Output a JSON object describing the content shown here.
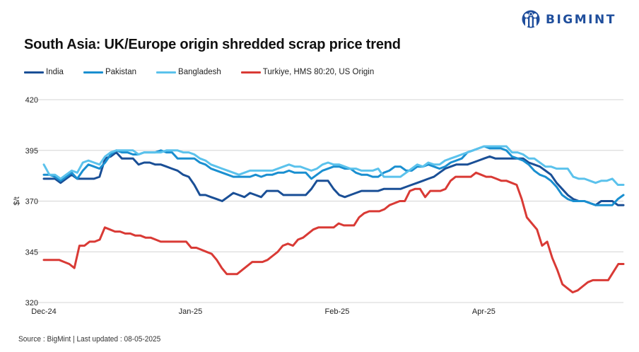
{
  "header": {
    "title": "South Asia: UK/Europe origin shredded scrap price trend",
    "logo_text": "BIGMINT",
    "logo_icon": "bigmint-people-icon"
  },
  "footer": {
    "source": "Source : BigMint | Last updated : 08-05-2025"
  },
  "chart_data": {
    "type": "line",
    "title": "South Asia: UK/Europe origin shredded scrap price trend",
    "xlabel": "",
    "ylabel": "$/t",
    "ylim": [
      320,
      420
    ],
    "yticks": [
      420,
      395,
      370,
      345,
      320
    ],
    "xtick_labels": [
      {
        "label": "Dec-24",
        "index": 0
      },
      {
        "label": "Jan-25",
        "index": 21
      },
      {
        "label": "Feb-25",
        "index": 42
      },
      {
        "label": "Apr-25",
        "index": 63
      }
    ],
    "grid": true,
    "legend_position": "top-left",
    "series": [
      {
        "name": "India",
        "color": "#1a4f96",
        "values": [
          381,
          381,
          381,
          379,
          381,
          383,
          381,
          381,
          381,
          381,
          382,
          391,
          392,
          394,
          391,
          391,
          391,
          388,
          389,
          389,
          388,
          388,
          387,
          386,
          385,
          383,
          382,
          378,
          373,
          373,
          372,
          371,
          370,
          372,
          374,
          373,
          372,
          374,
          373,
          372,
          375,
          375,
          375,
          373,
          373,
          373,
          373,
          373,
          376,
          380,
          380,
          380,
          376,
          373,
          372,
          373,
          374,
          375,
          375,
          375,
          375,
          376,
          376,
          376,
          376,
          377,
          378,
          379,
          380,
          381,
          382,
          384,
          386,
          387,
          388,
          388,
          388,
          389,
          390,
          391,
          392,
          391,
          391,
          391,
          391,
          391,
          391,
          389,
          388,
          387,
          385,
          383,
          379,
          376,
          373,
          371,
          370,
          370,
          369,
          368,
          370,
          370,
          370,
          368,
          368
        ]
      },
      {
        "name": "Pakistan",
        "color": "#1a8fd0",
        "values": [
          383,
          383,
          382,
          380,
          382,
          384,
          381,
          385,
          388,
          387,
          386,
          389,
          393,
          395,
          394,
          394,
          393,
          393,
          394,
          394,
          394,
          395,
          394,
          394,
          391,
          391,
          391,
          391,
          389,
          388,
          386,
          385,
          384,
          383,
          382,
          382,
          382,
          382,
          383,
          382,
          383,
          383,
          384,
          384,
          385,
          384,
          384,
          384,
          381,
          383,
          385,
          386,
          387,
          387,
          386,
          386,
          384,
          383,
          383,
          382,
          382,
          384,
          385,
          387,
          387,
          385,
          385,
          387,
          387,
          388,
          387,
          386,
          387,
          389,
          390,
          391,
          394,
          395,
          396,
          397,
          396,
          396,
          396,
          395,
          392,
          391,
          390,
          388,
          385,
          383,
          382,
          380,
          377,
          373,
          371,
          370,
          370,
          370,
          369,
          368,
          368,
          368,
          368,
          371,
          373
        ]
      },
      {
        "name": "Bangladesh",
        "color": "#5bc2ec",
        "values": [
          388,
          383,
          383,
          381,
          383,
          385,
          384,
          389,
          390,
          389,
          388,
          392,
          394,
          395,
          395,
          395,
          395,
          393,
          394,
          394,
          394,
          394,
          395,
          395,
          395,
          394,
          394,
          393,
          391,
          390,
          388,
          387,
          386,
          385,
          384,
          383,
          384,
          385,
          385,
          385,
          385,
          385,
          386,
          387,
          388,
          387,
          387,
          386,
          385,
          386,
          388,
          389,
          388,
          388,
          387,
          386,
          386,
          385,
          385,
          385,
          386,
          382,
          382,
          382,
          382,
          384,
          386,
          388,
          387,
          389,
          388,
          388,
          390,
          391,
          392,
          393,
          394,
          395,
          396,
          397,
          397,
          397,
          397,
          397,
          394,
          394,
          393,
          391,
          391,
          389,
          387,
          387,
          386,
          386,
          386,
          382,
          381,
          381,
          380,
          379,
          380,
          380,
          381,
          378,
          378
        ]
      },
      {
        "name": "Turkiye, HMS 80:20, US Origin",
        "color": "#d93a35",
        "values": [
          341,
          341,
          341,
          341,
          340,
          339,
          337,
          348,
          348,
          350,
          350,
          351,
          357,
          356,
          355,
          355,
          354,
          354,
          353,
          353,
          352,
          352,
          351,
          350,
          350,
          350,
          350,
          350,
          350,
          347,
          347,
          346,
          345,
          344,
          341,
          337,
          334,
          334,
          334,
          336,
          338,
          340,
          340,
          340,
          341,
          343,
          345,
          348,
          349,
          348,
          351,
          352,
          354,
          356,
          357,
          357,
          357,
          357,
          359,
          358,
          358,
          358,
          362,
          364,
          365,
          365,
          365,
          366,
          368,
          369,
          370,
          370,
          375,
          376,
          376,
          372,
          375,
          375,
          375,
          376,
          380,
          382,
          382,
          382,
          382,
          384,
          383,
          382,
          382,
          381,
          380,
          380,
          379,
          378,
          371,
          362,
          359,
          356,
          348,
          350,
          342,
          336,
          329,
          327,
          325,
          326,
          328,
          330,
          331,
          331,
          331,
          331,
          335,
          339,
          339
        ]
      }
    ]
  }
}
